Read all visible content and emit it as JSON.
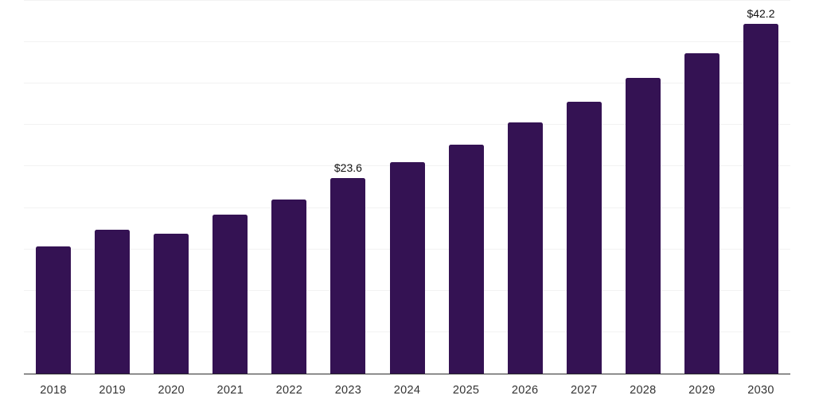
{
  "chart_data": {
    "type": "bar",
    "title": "",
    "xlabel": "",
    "ylabel": "",
    "categories": [
      "2018",
      "2019",
      "2020",
      "2021",
      "2022",
      "2023",
      "2024",
      "2025",
      "2026",
      "2027",
      "2028",
      "2029",
      "2030"
    ],
    "values": [
      15.4,
      17.4,
      16.9,
      19.2,
      21.0,
      23.6,
      25.5,
      27.6,
      30.3,
      32.8,
      35.7,
      38.7,
      42.2
    ],
    "data_labels": [
      "",
      "",
      "",
      "",
      "",
      "$23.6",
      "",
      "",
      "",
      "",
      "",
      "",
      "$42.2"
    ],
    "ylim": [
      0,
      45
    ],
    "gridline_step": 5,
    "grid": "horizontal",
    "legend_position": "none"
  },
  "style": {
    "bar_color": "#341253",
    "gridline_color": "#f2f2f2",
    "axis_color": "#2b2b2b",
    "tick_label_color": "#333333",
    "data_label_color": "#111111",
    "background": "#ffffff"
  }
}
